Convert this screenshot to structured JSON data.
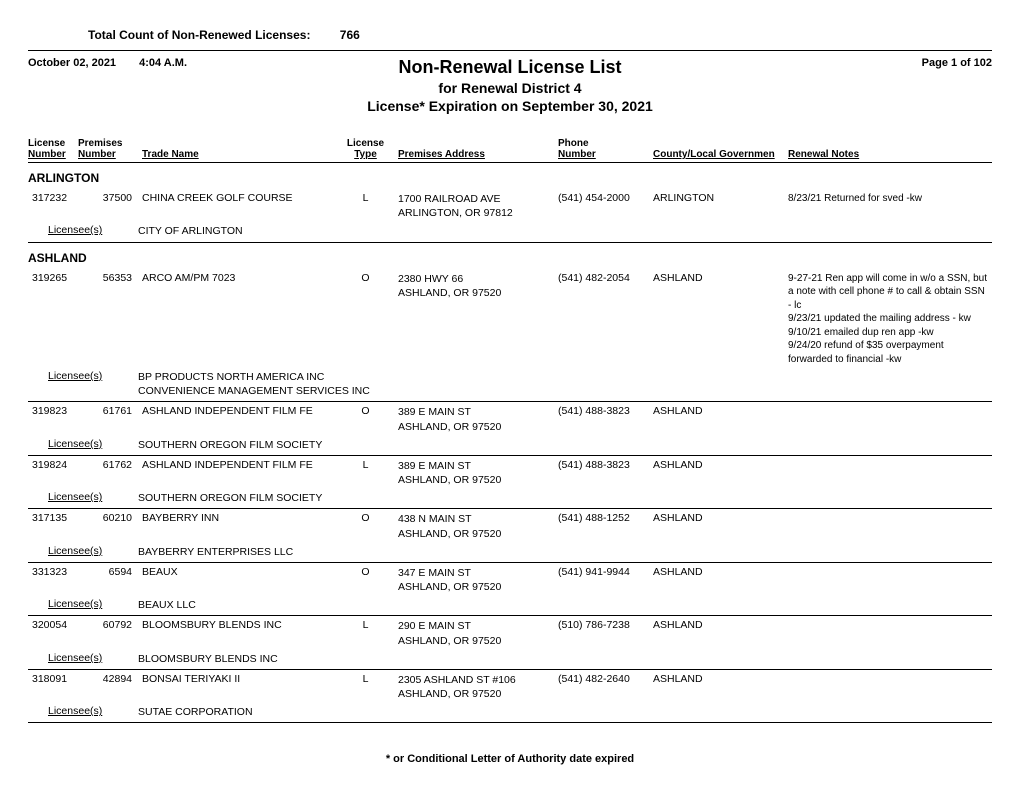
{
  "header": {
    "total_label": "Total Count of Non-Renewed Licenses:",
    "total_value": "766",
    "date": "October 02, 2021",
    "time": "4:04 A.M.",
    "title1": "Non-Renewal License List",
    "title2": "for Renewal District 4",
    "title3": "License*  Expiration on September 30, 2021",
    "page_label": "Page 1 of 102"
  },
  "columns": {
    "license_number_l1": "License",
    "license_number_l2": "Number",
    "premises_number_l1": "Premises",
    "premises_number_l2": "Number",
    "trade_name": "Trade Name",
    "license_type_l1": "License",
    "license_type_l2": "Type",
    "premises_address": "Premises Address",
    "phone_l1": "Phone",
    "phone_l2": "Number",
    "county_gov": "County/Local Governmen",
    "renewal_notes": "Renewal Notes"
  },
  "licensee_label": "Licensee(s)",
  "groups": [
    {
      "name": "ARLINGTON",
      "records": [
        {
          "license_number": "317232",
          "premises_number": "37500",
          "trade_name": "CHINA CREEK GOLF COURSE",
          "license_type": "L",
          "address_line1": "1700 RAILROAD AVE",
          "address_line2": "ARLINGTON, OR  97812",
          "phone": "(541) 454-2000",
          "county": "ARLINGTON",
          "notes": "8/23/21 Returned for sved -kw",
          "licensees": [
            "CITY OF ARLINGTON"
          ]
        }
      ]
    },
    {
      "name": "ASHLAND",
      "records": [
        {
          "license_number": "319265",
          "premises_number": "56353",
          "trade_name": "ARCO AM/PM 7023",
          "license_type": "O",
          "address_line1": "2380 HWY 66",
          "address_line2": "ASHLAND, OR  97520",
          "phone": "(541) 482-2054",
          "county": "ASHLAND",
          "notes": "9-27-21 Ren app will come in w/o a SSN, but a note with cell phone # to call & obtain SSN - lc\n9/23/21 updated the mailing address - kw\n9/10/21 emailed dup ren app -kw\n9/24/20 refund of $35 overpayment forwarded to financial -kw",
          "licensees": [
            "BP PRODUCTS NORTH AMERICA INC",
            "CONVENIENCE MANAGEMENT SERVICES INC"
          ]
        },
        {
          "license_number": "319823",
          "premises_number": "61761",
          "trade_name": "ASHLAND INDEPENDENT FILM FE",
          "license_type": "O",
          "address_line1": "389 E MAIN ST",
          "address_line2": "ASHLAND, OR  97520",
          "phone": "(541) 488-3823",
          "county": "ASHLAND",
          "notes": "",
          "licensees": [
            "SOUTHERN OREGON FILM SOCIETY"
          ]
        },
        {
          "license_number": "319824",
          "premises_number": "61762",
          "trade_name": "ASHLAND INDEPENDENT FILM FE",
          "license_type": "L",
          "address_line1": "389 E MAIN ST",
          "address_line2": "ASHLAND, OR  97520",
          "phone": "(541) 488-3823",
          "county": "ASHLAND",
          "notes": "",
          "licensees": [
            "SOUTHERN OREGON FILM SOCIETY"
          ]
        },
        {
          "license_number": "317135",
          "premises_number": "60210",
          "trade_name": "BAYBERRY INN",
          "license_type": "O",
          "address_line1": "438 N MAIN ST",
          "address_line2": "ASHLAND, OR  97520",
          "phone": "(541) 488-1252",
          "county": "ASHLAND",
          "notes": "",
          "licensees": [
            "BAYBERRY ENTERPRISES LLC"
          ]
        },
        {
          "license_number": "331323",
          "premises_number": "6594",
          "trade_name": "BEAUX",
          "license_type": "O",
          "address_line1": "347 E MAIN ST",
          "address_line2": "ASHLAND, OR  97520",
          "phone": "(541) 941-9944",
          "county": "ASHLAND",
          "notes": "",
          "licensees": [
            "BEAUX LLC"
          ]
        },
        {
          "license_number": "320054",
          "premises_number": "60792",
          "trade_name": "BLOOMSBURY BLENDS INC",
          "license_type": "L",
          "address_line1": "290 E MAIN ST",
          "address_line2": "ASHLAND, OR  97520",
          "phone": "(510) 786-7238",
          "county": "ASHLAND",
          "notes": "",
          "licensees": [
            "BLOOMSBURY BLENDS INC"
          ]
        },
        {
          "license_number": "318091",
          "premises_number": "42894",
          "trade_name": "BONSAI TERIYAKI II",
          "license_type": "L",
          "address_line1": "2305 ASHLAND ST #106",
          "address_line2": "ASHLAND, OR  97520",
          "phone": "(541) 482-2640",
          "county": "ASHLAND",
          "notes": "",
          "licensees": [
            "SUTAE CORPORATION"
          ]
        }
      ]
    }
  ],
  "footnote": "* or Conditional Letter of Authority date expired"
}
